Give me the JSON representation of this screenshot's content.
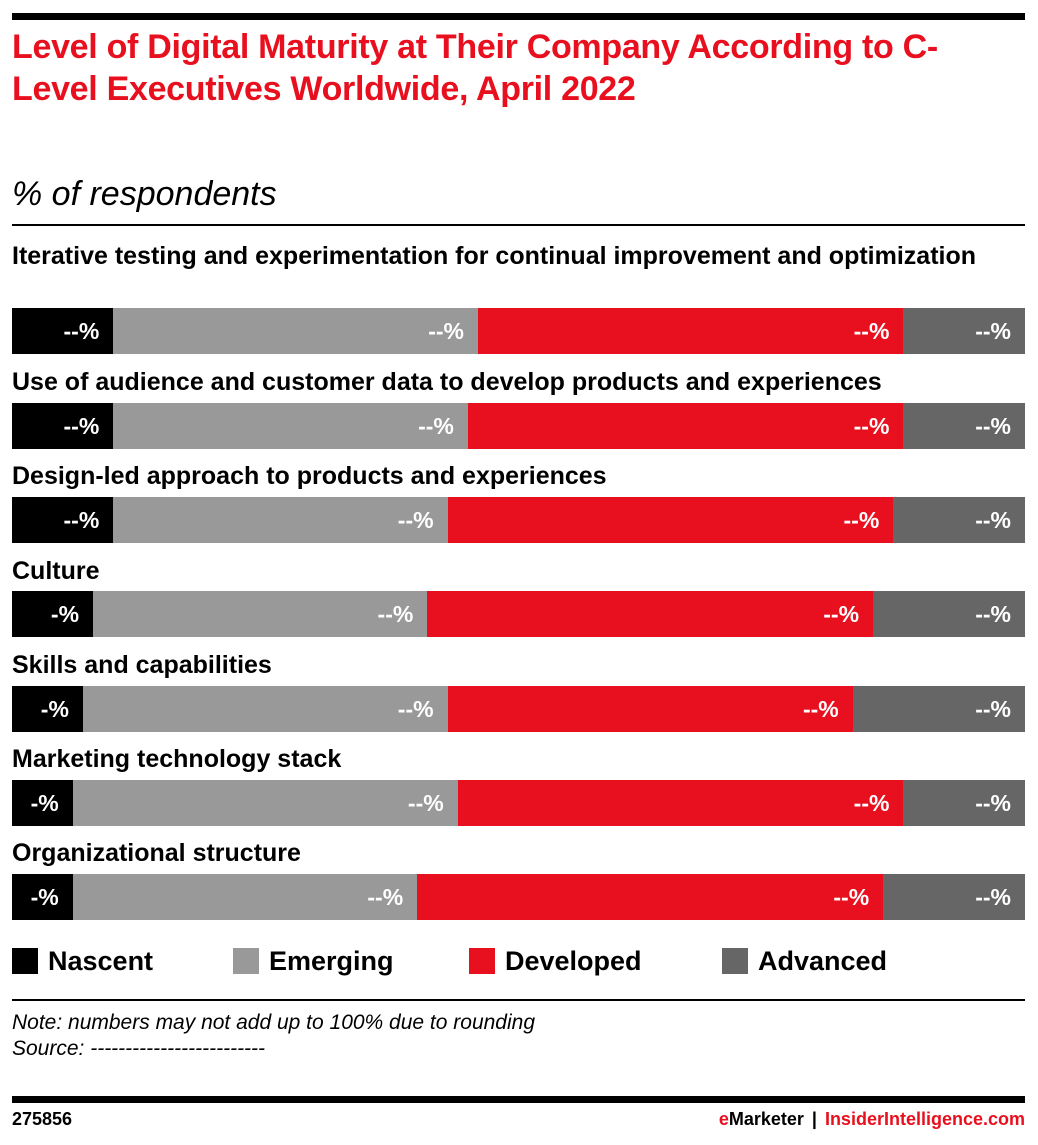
{
  "header": {
    "title": "Level of Digital Maturity at Their Company According to C-Level Executives Worldwide, April 2022",
    "subtitle": "% of respondents"
  },
  "colors": {
    "nascent": "#000000",
    "emerging": "#999999",
    "developed": "#e8101e",
    "advanced": "#666666",
    "brand_red": "#e8101e"
  },
  "chart_data": {
    "type": "bar",
    "orientation": "horizontal-stacked-100",
    "title": "Level of Digital Maturity at Their Company According to C-Level Executives Worldwide, April 2022",
    "subtitle": "% of respondents",
    "xlabel": "",
    "ylabel": "",
    "xlim": [
      0,
      100
    ],
    "grid": false,
    "legend_position": "bottom",
    "categories": [
      "Iterative testing and experimentation for continual improvement and optimization",
      "Use of audience and customer data to develop products and experiences",
      "Design-led approach to products and experiences",
      "Culture",
      "Skills and capabilities",
      "Marketing technology stack",
      "Organizational structure"
    ],
    "series": [
      {
        "name": "Nascent",
        "color": "#000000",
        "values": [
          10,
          10,
          10,
          8,
          7,
          6,
          6
        ],
        "labels": [
          "--%",
          "--%",
          "--%",
          "-%",
          "-%",
          "-%",
          "-%"
        ]
      },
      {
        "name": "Emerging",
        "color": "#999999",
        "values": [
          36,
          35,
          33,
          33,
          36,
          38,
          34
        ],
        "labels": [
          "--%",
          "--%",
          "--%",
          "--%",
          "--%",
          "--%",
          "--%"
        ]
      },
      {
        "name": "Developed",
        "color": "#e8101e",
        "values": [
          42,
          43,
          44,
          44,
          40,
          44,
          46
        ],
        "labels": [
          "--%",
          "--%",
          "--%",
          "--%",
          "--%",
          "--%",
          "--%"
        ]
      },
      {
        "name": "Advanced",
        "color": "#666666",
        "values": [
          12,
          12,
          13,
          15,
          17,
          12,
          14
        ],
        "labels": [
          "--%",
          "--%",
          "--%",
          "--%",
          "--%",
          "--%",
          "--%"
        ]
      }
    ]
  },
  "legend": [
    {
      "label": "Nascent"
    },
    {
      "label": "Emerging"
    },
    {
      "label": "Developed"
    },
    {
      "label": "Advanced"
    }
  ],
  "footer": {
    "note": "Note: numbers may not add up to 100% due to rounding",
    "source": "Source: -------------------------",
    "chart_id": "275856",
    "brand_e": "e",
    "brand_marketer": "Marketer",
    "brand_sep": "|",
    "brand_site": "InsiderIntelligence.com"
  }
}
